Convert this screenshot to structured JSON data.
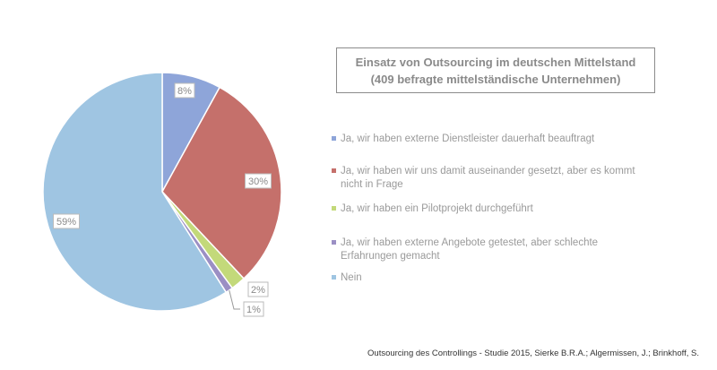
{
  "chart_data": {
    "type": "pie",
    "title": "Einsatz von Outsourcing im deutschen Mittelstand",
    "subtitle": "(409 befragte mittelständische Unternehmen)",
    "legend_position": "right",
    "slices": [
      {
        "name": "Ja, wir haben externe Dienstleister dauerhaft beauftragt",
        "value": 8,
        "label": "8%",
        "color": "#8ea5d9"
      },
      {
        "name": "Ja, wir haben wir uns damit auseinander gesetzt, aber es kommt nicht in Frage",
        "value": 30,
        "label": "30%",
        "color": "#c5706b"
      },
      {
        "name": "Ja, wir haben ein Pilotprojekt durchgeführt",
        "value": 2,
        "label": "2%",
        "color": "#c3d97a"
      },
      {
        "name": "Ja, wir haben externe Angebote getestet, aber schlechte Erfahrungen gemacht",
        "value": 1,
        "label": "1%",
        "color": "#9b8fc4"
      },
      {
        "name": "Nein",
        "value": 59,
        "label": "59%",
        "color": "#9fc5e2"
      }
    ]
  },
  "source": "Outsourcing des Controllings - Studie 2015, Sierke B.R.A.; Algermissen, J.; Brinkhoff, S."
}
